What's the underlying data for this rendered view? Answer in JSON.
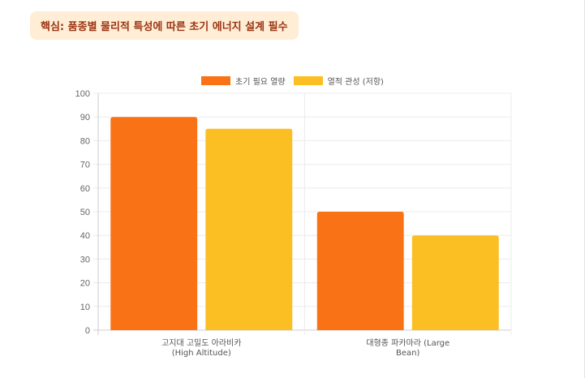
{
  "callout": {
    "text": "핵심: 품종별 물리적 특성에 따른 초기 에너지 설계 필수"
  },
  "colors": {
    "callout_bg": "#ffedd5",
    "callout_text": "#9a3412",
    "series_1": "#f97316",
    "series_2": "#fbbf24"
  },
  "chart_data": {
    "type": "bar",
    "categories": [
      [
        "고지대 고밀도 아라비카",
        "(High Altitude)"
      ],
      [
        "대형종 파카마라 (Large",
        "Bean)"
      ]
    ],
    "series": [
      {
        "name": "초기 필요 열량",
        "color": "#f97316",
        "values": [
          90,
          50
        ]
      },
      {
        "name": "열적 관성 (저항)",
        "color": "#fbbf24",
        "values": [
          85,
          40
        ]
      }
    ],
    "ylim": [
      0,
      100
    ],
    "yticks": [
      0,
      10,
      20,
      30,
      40,
      50,
      60,
      70,
      80,
      90,
      100
    ],
    "grid": true,
    "legend_position": "top-center"
  }
}
